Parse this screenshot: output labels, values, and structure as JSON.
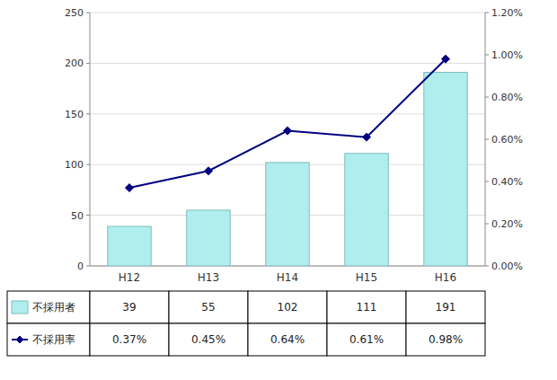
{
  "chart_data": {
    "type": "bar",
    "categories": [
      "H12",
      "H13",
      "H14",
      "H15",
      "H16"
    ],
    "series": [
      {
        "name": "不採用者",
        "type": "bar",
        "color": "#B0EEEE",
        "values": [
          39,
          55,
          102,
          111,
          191
        ]
      },
      {
        "name": "不採用率",
        "type": "line",
        "axis": "y2",
        "color": "#000080",
        "marker": "diamond",
        "values": [
          0.0037,
          0.0045,
          0.0064,
          0.0061,
          0.0098
        ],
        "value_labels": [
          "0.37%",
          "0.45%",
          "0.64%",
          "0.61%",
          "0.98%"
        ]
      }
    ],
    "ylim": [
      0,
      250
    ],
    "yticks": [
      0,
      50,
      100,
      150,
      200,
      250
    ],
    "y2lim": [
      0,
      0.012
    ],
    "y2ticks": [
      {
        "value": 0.0,
        "label": "0.00%"
      },
      {
        "value": 0.002,
        "label": "0.20%"
      },
      {
        "value": 0.004,
        "label": "0.40%"
      },
      {
        "value": 0.006,
        "label": "0.60%"
      },
      {
        "value": 0.008,
        "label": "0.80%"
      },
      {
        "value": 0.01,
        "label": "1.00%"
      },
      {
        "value": 0.012,
        "label": "1.20%"
      }
    ],
    "grid": true,
    "data_labels": true,
    "legend": "bottom"
  }
}
